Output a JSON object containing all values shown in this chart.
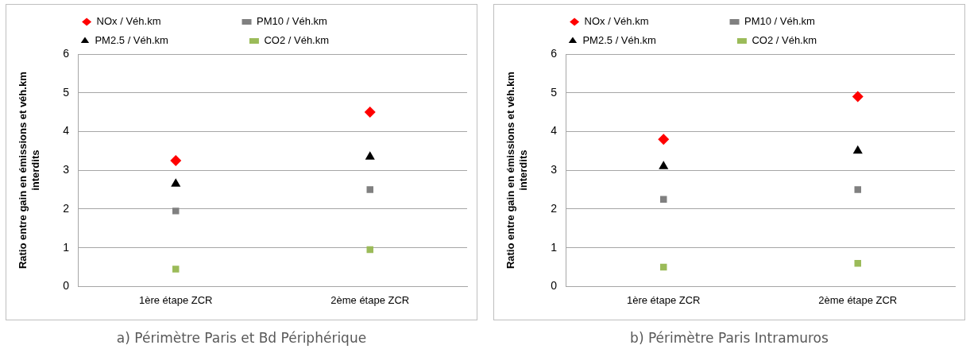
{
  "chart_data": [
    {
      "type": "scatter",
      "title": "a) Périmètre Paris et Bd Périphérique",
      "ylabel": "Ratio entre gain en émissions et véh.km interdits",
      "categories": [
        "1ère étape ZCR",
        "2ème étape ZCR"
      ],
      "ylim": [
        0,
        6
      ],
      "yticks": [
        0,
        1,
        2,
        3,
        4,
        5,
        6
      ],
      "grid": "y",
      "legend": "top",
      "series": [
        {
          "name": "NOx / Véh.km",
          "color": "#ff0000",
          "marker": "diamond",
          "values": [
            3.25,
            4.5
          ]
        },
        {
          "name": "PM10 / Véh.km",
          "color": "#808080",
          "marker": "square",
          "values": [
            1.95,
            2.5
          ]
        },
        {
          "name": "PM2.5 / Véh.km",
          "color": "#000000",
          "marker": "triangle",
          "values": [
            2.65,
            3.35
          ]
        },
        {
          "name": "CO2 / Véh.km",
          "color": "#9bbb59",
          "marker": "square",
          "values": [
            0.45,
            0.95
          ]
        }
      ]
    },
    {
      "type": "scatter",
      "title": "b) Périmètre Paris Intramuros",
      "ylabel": "Ratio entre gain en émissions et véh.km interdits",
      "categories": [
        "1ère étape ZCR",
        "2ème étape ZCR"
      ],
      "ylim": [
        0,
        6
      ],
      "yticks": [
        0,
        1,
        2,
        3,
        4,
        5,
        6
      ],
      "grid": "y",
      "legend": "top",
      "series": [
        {
          "name": "NOx / Véh.km",
          "color": "#ff0000",
          "marker": "diamond",
          "values": [
            3.8,
            4.9
          ]
        },
        {
          "name": "PM10 / Véh.km",
          "color": "#808080",
          "marker": "square",
          "values": [
            2.25,
            2.5
          ]
        },
        {
          "name": "PM2.5 / Véh.km",
          "color": "#000000",
          "marker": "triangle",
          "values": [
            3.1,
            3.5
          ]
        },
        {
          "name": "CO2 / Véh.km",
          "color": "#9bbb59",
          "marker": "square",
          "values": [
            0.5,
            0.6
          ]
        }
      ]
    }
  ]
}
